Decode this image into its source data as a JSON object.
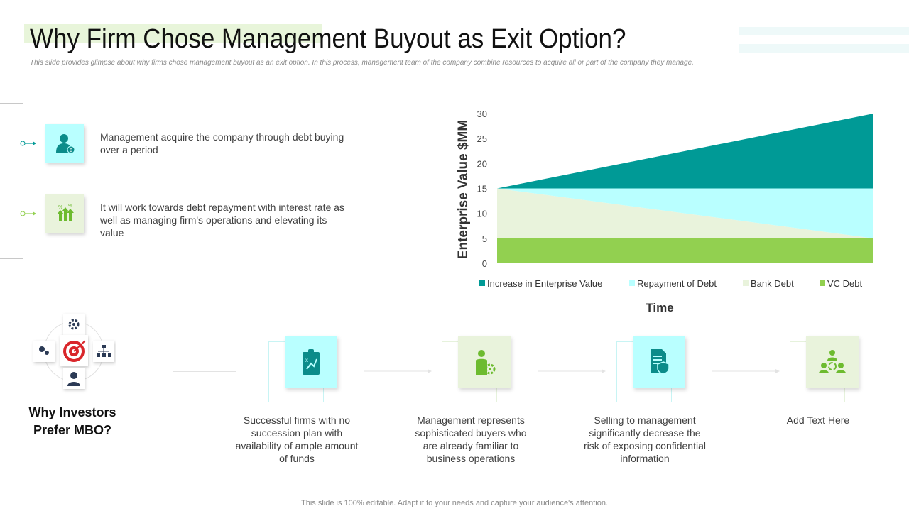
{
  "header": {
    "title": "Why Firm Chose Management Buyout as Exit Option?",
    "subtitle": "This slide provides glimpse about why firms chose management buyout as an exit option. In this process, management team of the company combine resources to acquire all or part of the company they manage."
  },
  "points": [
    {
      "icon": "manager-dollar-icon",
      "text": "Management acquire the company through debt buying over a period"
    },
    {
      "icon": "growth-arrows-icon",
      "text": "It will work towards debt repayment with interest rate as well as managing firm's operations and elevating its value"
    }
  ],
  "hub": {
    "title": "Why Investors Prefer MBO?"
  },
  "reasons": [
    {
      "icon": "clipboard-strategy-icon",
      "text": "Successful firms with no succession plan with availability of ample amount of funds"
    },
    {
      "icon": "person-gear-icon",
      "text": "Management represents sophisticated buyers who are already familiar to business operations"
    },
    {
      "icon": "document-shield-icon",
      "text": "Selling to management significantly decrease the risk of exposing confidential information"
    },
    {
      "icon": "team-cycle-icon",
      "text": "Add Text Here"
    }
  ],
  "footer": "This slide is 100% editable. Adapt it to your needs and capture your audience's attention.",
  "colors": {
    "teal": "#009a96",
    "cyan": "#b9ffff",
    "pale_green": "#e9f3dc",
    "green": "#92d050"
  },
  "chart_data": {
    "type": "area",
    "xlabel": "Time",
    "ylabel": "Enterprise Value $MM",
    "ylim": [
      0,
      30
    ],
    "yticks": [
      0,
      5,
      10,
      15,
      20,
      25,
      30
    ],
    "x": [
      0,
      1
    ],
    "legend_position": "bottom",
    "series": [
      {
        "name": "VC Debt",
        "color": "#92d050",
        "lower": [
          0,
          0
        ],
        "upper": [
          5,
          5
        ]
      },
      {
        "name": "Bank Debt",
        "color": "#e9f3dc",
        "lower": [
          5,
          5
        ],
        "upper": [
          15,
          5
        ]
      },
      {
        "name": "Repayment of Debt",
        "color": "#b9ffff",
        "lower": [
          15,
          5
        ],
        "upper": [
          15,
          15
        ]
      },
      {
        "name": "Increase in Enterprise Value",
        "color": "#009a96",
        "lower": [
          15,
          15
        ],
        "upper": [
          15,
          30
        ]
      }
    ],
    "legend_order": [
      "Increase in Enterprise Value",
      "Repayment of Debt",
      "Bank Debt",
      "VC Debt"
    ]
  }
}
